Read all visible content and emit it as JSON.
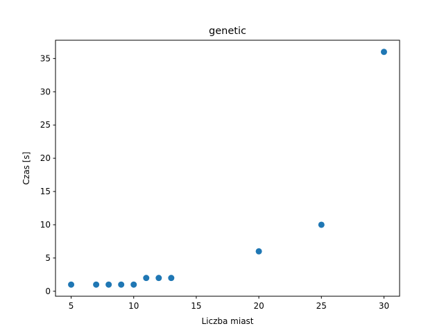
{
  "chart_data": {
    "type": "scatter",
    "title": "genetic",
    "xlabel": "Liczba miast",
    "ylabel": "Czas [s]",
    "xlim": [
      3.75,
      31.25
    ],
    "ylim": [
      -0.75,
      37.75
    ],
    "xticks": [
      5,
      10,
      15,
      20,
      25,
      30
    ],
    "yticks": [
      0,
      5,
      10,
      15,
      20,
      25,
      30,
      35
    ],
    "grid": false,
    "series": [
      {
        "color": "#1f77b4",
        "points": [
          {
            "x": 5,
            "y": 1
          },
          {
            "x": 7,
            "y": 1
          },
          {
            "x": 8,
            "y": 1
          },
          {
            "x": 9,
            "y": 1
          },
          {
            "x": 10,
            "y": 1
          },
          {
            "x": 11,
            "y": 2
          },
          {
            "x": 12,
            "y": 2
          },
          {
            "x": 13,
            "y": 2
          },
          {
            "x": 20,
            "y": 6
          },
          {
            "x": 25,
            "y": 10
          },
          {
            "x": 30,
            "y": 36
          }
        ]
      }
    ]
  }
}
